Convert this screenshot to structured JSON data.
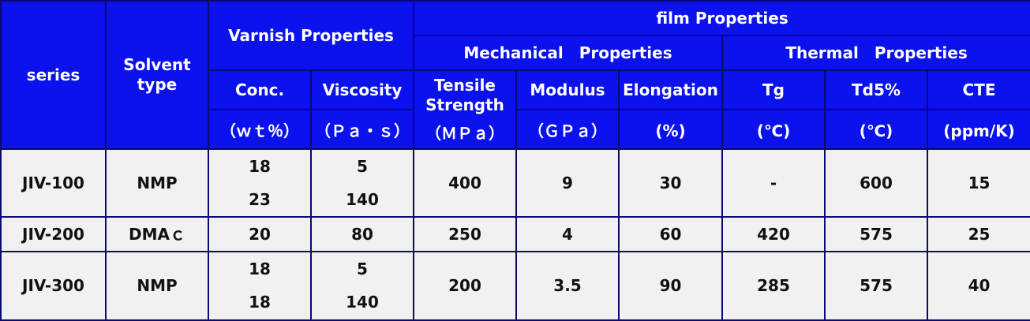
{
  "header": {
    "series": "series",
    "solvent": "Solvent type",
    "varnish_group": "Varnish Properties",
    "film_group": "film Properties",
    "mechanical_group": "Mechanical　Properties",
    "thermal_group": "Thermal　Properties",
    "conc": "Conc.",
    "conc_unit": "（ｗｔ％）",
    "viscosity": "Viscosity",
    "viscosity_unit": "（Ｐａ・ｓ）",
    "tensile": "Tensile Strength",
    "tensile_unit": "（ＭＰａ）",
    "modulus": "Modulus",
    "modulus_unit": "（ＧＰａ）",
    "elongation": "Elongation",
    "elongation_unit": "(%)",
    "tg": "Tg",
    "tg_unit": "(℃)",
    "td5": "Td5%",
    "td5_unit": "(℃)",
    "cte": "CTE",
    "cte_unit": "(ppm/K)"
  },
  "rows": [
    {
      "series": "JIV-100",
      "solvent": "NMP",
      "conc": [
        "18",
        "23"
      ],
      "viscosity": [
        "5",
        "140"
      ],
      "tensile": "400",
      "modulus": "9",
      "elongation": "30",
      "tg": "-",
      "td5": "600",
      "cte": "15"
    },
    {
      "series": "JIV-200",
      "solvent": "DMAｃ",
      "conc": [
        "20"
      ],
      "viscosity": [
        "80"
      ],
      "tensile": "250",
      "modulus": "4",
      "elongation": "60",
      "tg": "420",
      "td5": "575",
      "cte": "25"
    },
    {
      "series": "JIV-300",
      "solvent": "NMP",
      "conc": [
        "18",
        "18"
      ],
      "viscosity": [
        "5",
        "140"
      ],
      "tensile": "200",
      "modulus": "3.5",
      "elongation": "90",
      "tg": "285",
      "td5": "575",
      "cte": "40"
    }
  ],
  "colors": {
    "header_bg": "#0b12ee",
    "header_text": "#ffffff",
    "body_bg": "#f1f1f1",
    "border": "#0a0a70"
  }
}
